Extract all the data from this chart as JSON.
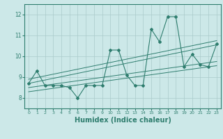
{
  "xlabel": "Humidex (Indice chaleur)",
  "x": [
    0,
    1,
    2,
    3,
    4,
    5,
    6,
    7,
    8,
    9,
    10,
    11,
    12,
    13,
    14,
    15,
    16,
    17,
    18,
    19,
    20,
    21,
    22,
    23
  ],
  "y_main": [
    8.7,
    9.3,
    8.6,
    8.6,
    8.6,
    8.5,
    8.0,
    8.6,
    8.6,
    8.6,
    10.3,
    10.3,
    9.1,
    8.6,
    8.6,
    11.3,
    10.7,
    11.9,
    11.9,
    9.5,
    10.1,
    9.6,
    9.5,
    10.6
  ],
  "ylim": [
    7.5,
    12.5
  ],
  "xlim": [
    -0.5,
    23.5
  ],
  "yticks": [
    8,
    9,
    10,
    11,
    12
  ],
  "xticks": [
    0,
    1,
    2,
    3,
    4,
    5,
    6,
    7,
    8,
    9,
    10,
    11,
    12,
    13,
    14,
    15,
    16,
    17,
    18,
    19,
    20,
    21,
    22,
    23
  ],
  "line_color": "#2e7d6e",
  "bg_color": "#cce8e8",
  "grid_color": "#aacaca",
  "trend_lines": [
    [
      0,
      8.3,
      23,
      9.55
    ],
    [
      0,
      8.5,
      23,
      9.75
    ],
    [
      0,
      8.7,
      23,
      10.55
    ],
    [
      0,
      8.9,
      23,
      10.75
    ]
  ]
}
